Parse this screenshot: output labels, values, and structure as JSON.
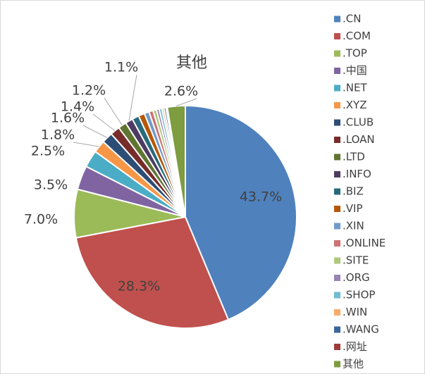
{
  "chart_data": {
    "type": "pie",
    "categories": [
      ".CN",
      ".COM",
      ".TOP",
      ".中国",
      ".NET",
      ".XYZ",
      ".CLUB",
      ".LOAN",
      ".LTD",
      ".INFO",
      ".BIZ",
      ".VIP",
      ".XIN",
      ".ONLINE",
      ".SITE",
      ".ORG",
      ".SHOP",
      ".WIN",
      ".WANG",
      ".网址",
      "其他"
    ],
    "values": [
      43.7,
      28.3,
      7.0,
      3.5,
      2.5,
      1.8,
      1.6,
      1.4,
      1.2,
      1.1,
      1.0,
      0.9,
      0.7,
      0.6,
      0.5,
      0.4,
      0.4,
      0.3,
      0.3,
      0.2,
      2.6
    ],
    "value_labels": [
      "43.7%",
      "28.3%",
      "7.0%",
      "3.5%",
      "2.5%",
      "1.8%",
      "1.6%",
      "1.4%",
      "1.2%",
      "1.1%",
      null,
      null,
      null,
      null,
      null,
      null,
      null,
      null,
      null,
      null,
      "2.6%"
    ],
    "colors": [
      "#4f81bd",
      "#c0504d",
      "#9bbb59",
      "#8064a2",
      "#4bacc6",
      "#f79646",
      "#2c4d75",
      "#772c2a",
      "#5f7530",
      "#4d3b62",
      "#276a7c",
      "#b65708",
      "#729aca",
      "#cd7371",
      "#afc97a",
      "#9983b5",
      "#6fbdd1",
      "#f9ab6b",
      "#3a679c",
      "#9e3b38",
      "#7e9c40"
    ],
    "legend": "right"
  }
}
